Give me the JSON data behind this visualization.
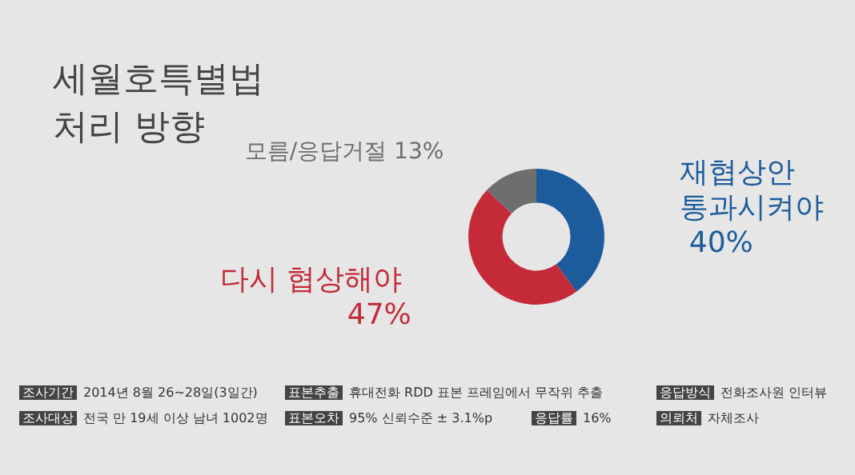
{
  "chart_data": {
    "type": "donut",
    "title": "세월호특별법 처리 방향",
    "categories": [
      "재협상안 통과시켜야",
      "다시 협상해야",
      "모름/응답거절"
    ],
    "values": [
      40,
      47,
      13
    ],
    "value_labels": [
      "40%",
      "47%",
      "13%"
    ],
    "colors": [
      "#1c5c9c",
      "#c42a38",
      "#6e6e6e"
    ],
    "legend": false,
    "annotations": [
      "조사기간 2014년 8월 26~28일(3일간)",
      "조사대상 전국 만 19세 이상 남녀 1002명",
      "표본추출 휴대전화 RDD 표본 프레임에서 무작위 추출",
      "표본오차 95% 신뢰수준 ± 3.1%p",
      "응답률 16%",
      "응답방식 전화조사원 인터뷰",
      "의뢰처 자체조사"
    ]
  }
}
